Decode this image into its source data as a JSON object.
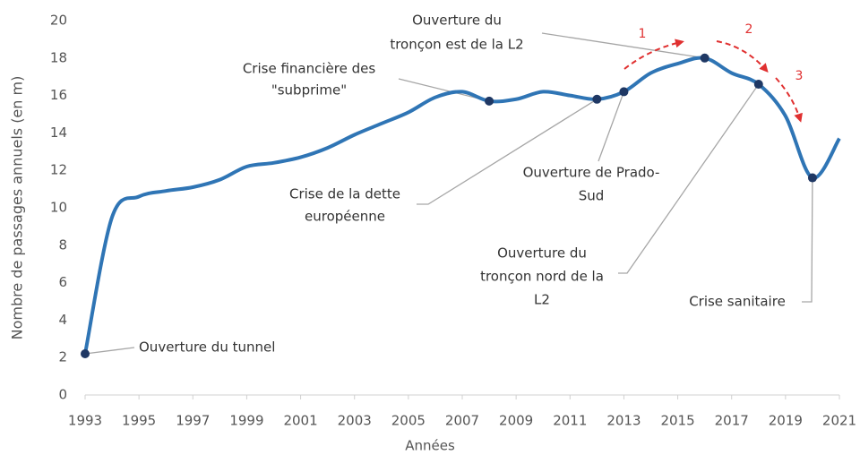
{
  "chart_data": {
    "type": "line",
    "x_label": "Années",
    "y_label": "Nombre de passages annuels (en m)",
    "x": [
      1993,
      1994,
      1995,
      1996,
      1997,
      1998,
      1999,
      2000,
      2001,
      2002,
      2003,
      2004,
      2005,
      2006,
      2007,
      2008,
      2009,
      2010,
      2011,
      2012,
      2013,
      2014,
      2015,
      2016,
      2017,
      2018,
      2019,
      2020,
      2021
    ],
    "series": [
      {
        "name": "Passages annuels",
        "color": "#2f75b5",
        "values": [
          2.2,
          9.5,
          10.6,
          10.9,
          11.1,
          11.5,
          12.2,
          12.4,
          12.7,
          13.2,
          13.9,
          14.5,
          15.1,
          15.9,
          16.2,
          15.7,
          15.8,
          16.2,
          16.0,
          15.8,
          16.2,
          17.2,
          17.7,
          18.0,
          17.2,
          16.6,
          14.9,
          11.6,
          13.7
        ]
      }
    ],
    "xlim": [
      1993,
      2021
    ],
    "xticks": [
      1993,
      1995,
      1997,
      1999,
      2001,
      2003,
      2005,
      2007,
      2009,
      2011,
      2013,
      2015,
      2017,
      2019,
      2021
    ],
    "ylim": [
      0,
      20
    ],
    "yticks": [
      0,
      2,
      4,
      6,
      8,
      10,
      12,
      14,
      16,
      18,
      20
    ],
    "marker_color": "#1f3864",
    "annotations": [
      {
        "x": 1993,
        "text": [
          "Ouverture du tunnel"
        ]
      },
      {
        "x": 2008,
        "text": [
          "Crise financière des",
          "\"subprime\""
        ]
      },
      {
        "x": 2012,
        "text": [
          "Crise de la dette",
          "européenne"
        ]
      },
      {
        "x": 2013,
        "text": [
          "Ouverture de Prado-",
          "Sud"
        ]
      },
      {
        "x": 2016,
        "text": [
          "Ouverture du",
          "tronçon est de la L2"
        ]
      },
      {
        "x": 2018,
        "text": [
          "Ouverture du",
          "tronçon nord de la",
          "L2"
        ]
      },
      {
        "x": 2020,
        "text": [
          "Crise sanitaire"
        ]
      }
    ],
    "phases": [
      "1",
      "2",
      "3"
    ]
  }
}
